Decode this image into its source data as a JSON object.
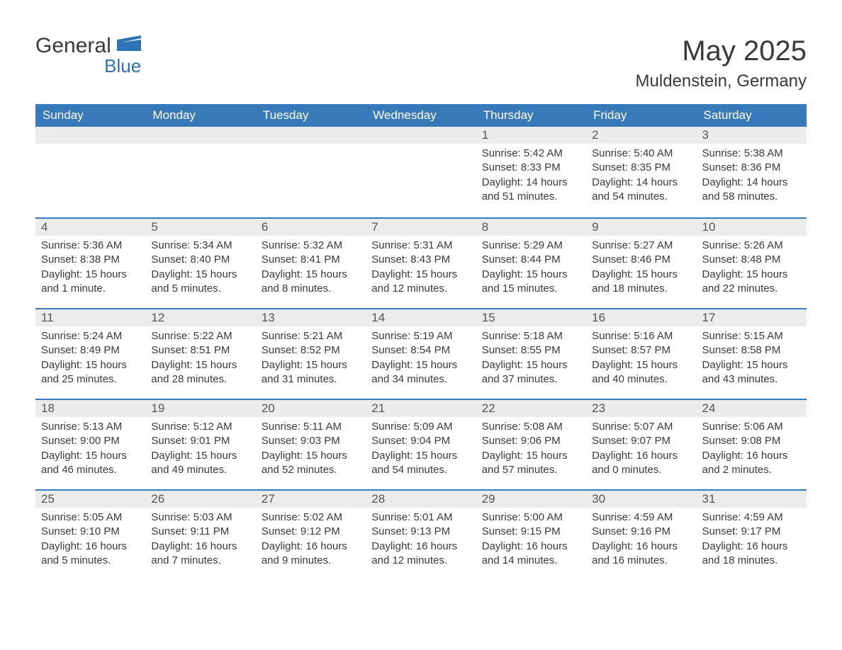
{
  "logo": {
    "word1": "General",
    "word2": "Blue",
    "text_color": "#3a3a3a",
    "accent_color": "#2f72b6"
  },
  "title": {
    "month_year": "May 2025",
    "location": "Muldenstein, Germany"
  },
  "styles": {
    "header_bg": "#3879b9",
    "header_text": "#ffffff",
    "daybar_bg": "#ececec",
    "daybar_border": "#3879b9",
    "body_bg": "#ffffff",
    "text_color": "#3a3a3a",
    "font_family": "Arial, Helvetica, sans-serif",
    "title_fontsize_pt": 30,
    "location_fontsize_pt": 18,
    "header_fontsize_pt": 13,
    "body_fontsize_pt": 11
  },
  "calendar": {
    "weekdays": [
      "Sunday",
      "Monday",
      "Tuesday",
      "Wednesday",
      "Thursday",
      "Friday",
      "Saturday"
    ],
    "weeks": [
      [
        null,
        null,
        null,
        null,
        {
          "day": "1",
          "sunrise": "Sunrise: 5:42 AM",
          "sunset": "Sunset: 8:33 PM",
          "daylight": "Daylight: 14 hours and 51 minutes."
        },
        {
          "day": "2",
          "sunrise": "Sunrise: 5:40 AM",
          "sunset": "Sunset: 8:35 PM",
          "daylight": "Daylight: 14 hours and 54 minutes."
        },
        {
          "day": "3",
          "sunrise": "Sunrise: 5:38 AM",
          "sunset": "Sunset: 8:36 PM",
          "daylight": "Daylight: 14 hours and 58 minutes."
        }
      ],
      [
        {
          "day": "4",
          "sunrise": "Sunrise: 5:36 AM",
          "sunset": "Sunset: 8:38 PM",
          "daylight": "Daylight: 15 hours and 1 minute."
        },
        {
          "day": "5",
          "sunrise": "Sunrise: 5:34 AM",
          "sunset": "Sunset: 8:40 PM",
          "daylight": "Daylight: 15 hours and 5 minutes."
        },
        {
          "day": "6",
          "sunrise": "Sunrise: 5:32 AM",
          "sunset": "Sunset: 8:41 PM",
          "daylight": "Daylight: 15 hours and 8 minutes."
        },
        {
          "day": "7",
          "sunrise": "Sunrise: 5:31 AM",
          "sunset": "Sunset: 8:43 PM",
          "daylight": "Daylight: 15 hours and 12 minutes."
        },
        {
          "day": "8",
          "sunrise": "Sunrise: 5:29 AM",
          "sunset": "Sunset: 8:44 PM",
          "daylight": "Daylight: 15 hours and 15 minutes."
        },
        {
          "day": "9",
          "sunrise": "Sunrise: 5:27 AM",
          "sunset": "Sunset: 8:46 PM",
          "daylight": "Daylight: 15 hours and 18 minutes."
        },
        {
          "day": "10",
          "sunrise": "Sunrise: 5:26 AM",
          "sunset": "Sunset: 8:48 PM",
          "daylight": "Daylight: 15 hours and 22 minutes."
        }
      ],
      [
        {
          "day": "11",
          "sunrise": "Sunrise: 5:24 AM",
          "sunset": "Sunset: 8:49 PM",
          "daylight": "Daylight: 15 hours and 25 minutes."
        },
        {
          "day": "12",
          "sunrise": "Sunrise: 5:22 AM",
          "sunset": "Sunset: 8:51 PM",
          "daylight": "Daylight: 15 hours and 28 minutes."
        },
        {
          "day": "13",
          "sunrise": "Sunrise: 5:21 AM",
          "sunset": "Sunset: 8:52 PM",
          "daylight": "Daylight: 15 hours and 31 minutes."
        },
        {
          "day": "14",
          "sunrise": "Sunrise: 5:19 AM",
          "sunset": "Sunset: 8:54 PM",
          "daylight": "Daylight: 15 hours and 34 minutes."
        },
        {
          "day": "15",
          "sunrise": "Sunrise: 5:18 AM",
          "sunset": "Sunset: 8:55 PM",
          "daylight": "Daylight: 15 hours and 37 minutes."
        },
        {
          "day": "16",
          "sunrise": "Sunrise: 5:16 AM",
          "sunset": "Sunset: 8:57 PM",
          "daylight": "Daylight: 15 hours and 40 minutes."
        },
        {
          "day": "17",
          "sunrise": "Sunrise: 5:15 AM",
          "sunset": "Sunset: 8:58 PM",
          "daylight": "Daylight: 15 hours and 43 minutes."
        }
      ],
      [
        {
          "day": "18",
          "sunrise": "Sunrise: 5:13 AM",
          "sunset": "Sunset: 9:00 PM",
          "daylight": "Daylight: 15 hours and 46 minutes."
        },
        {
          "day": "19",
          "sunrise": "Sunrise: 5:12 AM",
          "sunset": "Sunset: 9:01 PM",
          "daylight": "Daylight: 15 hours and 49 minutes."
        },
        {
          "day": "20",
          "sunrise": "Sunrise: 5:11 AM",
          "sunset": "Sunset: 9:03 PM",
          "daylight": "Daylight: 15 hours and 52 minutes."
        },
        {
          "day": "21",
          "sunrise": "Sunrise: 5:09 AM",
          "sunset": "Sunset: 9:04 PM",
          "daylight": "Daylight: 15 hours and 54 minutes."
        },
        {
          "day": "22",
          "sunrise": "Sunrise: 5:08 AM",
          "sunset": "Sunset: 9:06 PM",
          "daylight": "Daylight: 15 hours and 57 minutes."
        },
        {
          "day": "23",
          "sunrise": "Sunrise: 5:07 AM",
          "sunset": "Sunset: 9:07 PM",
          "daylight": "Daylight: 16 hours and 0 minutes."
        },
        {
          "day": "24",
          "sunrise": "Sunrise: 5:06 AM",
          "sunset": "Sunset: 9:08 PM",
          "daylight": "Daylight: 16 hours and 2 minutes."
        }
      ],
      [
        {
          "day": "25",
          "sunrise": "Sunrise: 5:05 AM",
          "sunset": "Sunset: 9:10 PM",
          "daylight": "Daylight: 16 hours and 5 minutes."
        },
        {
          "day": "26",
          "sunrise": "Sunrise: 5:03 AM",
          "sunset": "Sunset: 9:11 PM",
          "daylight": "Daylight: 16 hours and 7 minutes."
        },
        {
          "day": "27",
          "sunrise": "Sunrise: 5:02 AM",
          "sunset": "Sunset: 9:12 PM",
          "daylight": "Daylight: 16 hours and 9 minutes."
        },
        {
          "day": "28",
          "sunrise": "Sunrise: 5:01 AM",
          "sunset": "Sunset: 9:13 PM",
          "daylight": "Daylight: 16 hours and 12 minutes."
        },
        {
          "day": "29",
          "sunrise": "Sunrise: 5:00 AM",
          "sunset": "Sunset: 9:15 PM",
          "daylight": "Daylight: 16 hours and 14 minutes."
        },
        {
          "day": "30",
          "sunrise": "Sunrise: 4:59 AM",
          "sunset": "Sunset: 9:16 PM",
          "daylight": "Daylight: 16 hours and 16 minutes."
        },
        {
          "day": "31",
          "sunrise": "Sunrise: 4:59 AM",
          "sunset": "Sunset: 9:17 PM",
          "daylight": "Daylight: 16 hours and 18 minutes."
        }
      ]
    ]
  }
}
